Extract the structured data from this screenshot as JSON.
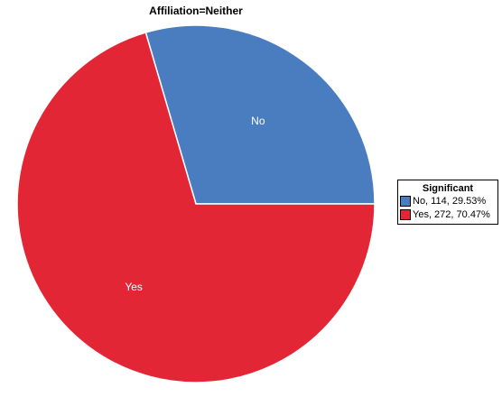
{
  "chart_data": {
    "type": "pie",
    "title": "Affiliation=Neither",
    "slices": [
      {
        "label": "No",
        "value": 114,
        "percent": 29.53,
        "color": "#4a7dbf",
        "legend_text": "No, 114, 29.53%"
      },
      {
        "label": "Yes",
        "value": 272,
        "percent": 70.47,
        "color": "#e32636",
        "legend_text": "Yes, 272, 70.47%"
      }
    ],
    "legend": {
      "title": "Significant",
      "placement": "right"
    }
  }
}
